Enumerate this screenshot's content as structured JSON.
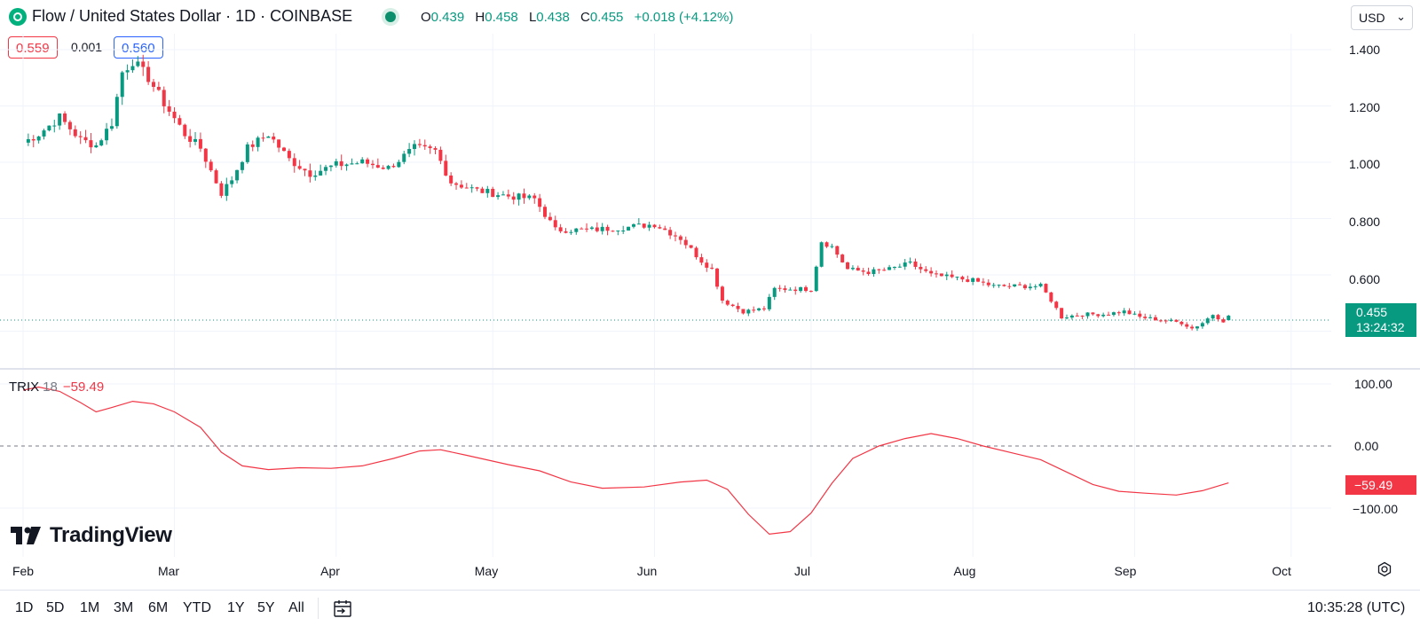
{
  "header": {
    "title": "Flow / United States Dollar · 1D · COINBASE",
    "ohlc": [
      {
        "key": "O",
        "value": "0.439"
      },
      {
        "key": "H",
        "value": "0.458"
      },
      {
        "key": "L",
        "value": "0.438"
      },
      {
        "key": "C",
        "value": "0.455"
      }
    ],
    "change": "+0.018 (+4.12%)",
    "currency": "USD",
    "icons": {
      "symbol": "flow-logo-icon",
      "live": "live-status-dot-icon",
      "currency_dropdown": "chevron-down-icon"
    }
  },
  "trade": {
    "sell_price": "0.559",
    "spread": "0.001",
    "buy_price": "0.560"
  },
  "price_axis": {
    "labels": [
      "1.400",
      "1.200",
      "1.000",
      "0.800",
      "0.600"
    ]
  },
  "last_price": {
    "value": "0.455",
    "countdown": "13:24:32"
  },
  "indicator": {
    "name": "TRIX",
    "param": "18",
    "value": "−59.49",
    "axis_labels": [
      "100.00",
      "0.00",
      "−100.00"
    ],
    "tag": "−59.49"
  },
  "branding": {
    "name": "TradingView",
    "icon": "tradingview-logo-icon"
  },
  "time_axis": {
    "months": [
      "Feb",
      "Mar",
      "Apr",
      "May",
      "Jun",
      "Jul",
      "Aug",
      "Sep",
      "Oct"
    ]
  },
  "toolbar": {
    "ranges": [
      "1D",
      "5D",
      "1M",
      "3M",
      "6M",
      "YTD",
      "1Y",
      "5Y",
      "All"
    ],
    "clock": "10:35:28 (UTC)",
    "icons": {
      "date_range": "calendar-goto-icon",
      "settings": "gear-icon"
    }
  },
  "colors": {
    "up": "#089981",
    "down": "#f23645",
    "trix_line": "#f23645",
    "grid": "#f0f3fa",
    "accent": "#2962ff"
  },
  "chart_data": [
    {
      "type": "candlestick",
      "title": "Flow / United States Dollar · 1D · COINBASE",
      "x_range": [
        "2024-02-01",
        "2024-10-05"
      ],
      "ylim": [
        0.36,
        1.48
      ],
      "grid": true,
      "series": [
        {
          "name": "FLOW/USD",
          "anchor_closes": [
            [
              "2024-02-01",
              1.07
            ],
            [
              "2024-02-04",
              1.1
            ],
            [
              "2024-02-08",
              1.16
            ],
            [
              "2024-02-12",
              1.08
            ],
            [
              "2024-02-15",
              1.06
            ],
            [
              "2024-02-18",
              1.14
            ],
            [
              "2024-02-20",
              1.32
            ],
            [
              "2024-02-22",
              1.36
            ],
            [
              "2024-02-25",
              1.3
            ],
            [
              "2024-02-28",
              1.21
            ],
            [
              "2024-03-03",
              1.1
            ],
            [
              "2024-03-06",
              1.05
            ],
            [
              "2024-03-10",
              0.89
            ],
            [
              "2024-03-12",
              0.94
            ],
            [
              "2024-03-15",
              1.05
            ],
            [
              "2024-03-19",
              1.1
            ],
            [
              "2024-03-23",
              1.01
            ],
            [
              "2024-03-27",
              0.96
            ],
            [
              "2024-04-01",
              0.99
            ],
            [
              "2024-04-06",
              1.0
            ],
            [
              "2024-04-11",
              0.98
            ],
            [
              "2024-04-16",
              1.05
            ],
            [
              "2024-04-20",
              1.04
            ],
            [
              "2024-04-23",
              0.93
            ],
            [
              "2024-04-28",
              0.9
            ],
            [
              "2024-05-04",
              0.88
            ],
            [
              "2024-05-09",
              0.87
            ],
            [
              "2024-05-13",
              0.76
            ],
            [
              "2024-05-20",
              0.76
            ],
            [
              "2024-05-27",
              0.77
            ],
            [
              "2024-06-01",
              0.78
            ],
            [
              "2024-06-06",
              0.73
            ],
            [
              "2024-06-10",
              0.65
            ],
            [
              "2024-06-12",
              0.62
            ],
            [
              "2024-06-14",
              0.51
            ],
            [
              "2024-06-18",
              0.47
            ],
            [
              "2024-06-22",
              0.48
            ],
            [
              "2024-06-24",
              0.55
            ],
            [
              "2024-06-28",
              0.55
            ],
            [
              "2024-07-01",
              0.55
            ],
            [
              "2024-07-03",
              0.72
            ],
            [
              "2024-07-05",
              0.7
            ],
            [
              "2024-07-08",
              0.62
            ],
            [
              "2024-07-12",
              0.61
            ],
            [
              "2024-07-16",
              0.62
            ],
            [
              "2024-07-20",
              0.64
            ],
            [
              "2024-07-24",
              0.6
            ],
            [
              "2024-07-28",
              0.59
            ],
            [
              "2024-08-01",
              0.58
            ],
            [
              "2024-08-05",
              0.56
            ],
            [
              "2024-08-10",
              0.56
            ],
            [
              "2024-08-14",
              0.56
            ],
            [
              "2024-08-16",
              0.51
            ],
            [
              "2024-08-18",
              0.45
            ],
            [
              "2024-08-22",
              0.46
            ],
            [
              "2024-08-26",
              0.46
            ],
            [
              "2024-08-30",
              0.47
            ],
            [
              "2024-09-02",
              0.45
            ],
            [
              "2024-09-06",
              0.44
            ],
            [
              "2024-09-10",
              0.43
            ],
            [
              "2024-09-12",
              0.41
            ],
            [
              "2024-09-14",
              0.43
            ],
            [
              "2024-09-16",
              0.46
            ],
            [
              "2024-09-18",
              0.437
            ],
            [
              "2024-09-19",
              0.455
            ]
          ]
        }
      ],
      "last": {
        "date": "2024-09-19",
        "open": 0.439,
        "high": 0.458,
        "low": 0.438,
        "close": 0.455
      }
    },
    {
      "type": "line",
      "title": "TRIX 18",
      "x_range": [
        "2024-02-01",
        "2024-10-05"
      ],
      "ylim": [
        -160,
        100
      ],
      "zero_line": true,
      "series": [
        {
          "name": "TRIX",
          "points": [
            [
              "2024-02-01",
              90
            ],
            [
              "2024-02-04",
              95
            ],
            [
              "2024-02-08",
              88
            ],
            [
              "2024-02-12",
              70
            ],
            [
              "2024-02-15",
              55
            ],
            [
              "2024-02-18",
              62
            ],
            [
              "2024-02-22",
              72
            ],
            [
              "2024-02-26",
              68
            ],
            [
              "2024-03-01",
              55
            ],
            [
              "2024-03-06",
              30
            ],
            [
              "2024-03-10",
              -10
            ],
            [
              "2024-03-14",
              -32
            ],
            [
              "2024-03-19",
              -38
            ],
            [
              "2024-03-25",
              -35
            ],
            [
              "2024-03-31",
              -36
            ],
            [
              "2024-04-06",
              -32
            ],
            [
              "2024-04-12",
              -20
            ],
            [
              "2024-04-17",
              -8
            ],
            [
              "2024-04-21",
              -6
            ],
            [
              "2024-04-26",
              -15
            ],
            [
              "2024-05-04",
              -30
            ],
            [
              "2024-05-10",
              -40
            ],
            [
              "2024-05-16",
              -58
            ],
            [
              "2024-05-22",
              -68
            ],
            [
              "2024-05-30",
              -66
            ],
            [
              "2024-06-06",
              -58
            ],
            [
              "2024-06-11",
              -55
            ],
            [
              "2024-06-15",
              -70
            ],
            [
              "2024-06-19",
              -110
            ],
            [
              "2024-06-23",
              -142
            ],
            [
              "2024-06-27",
              -138
            ],
            [
              "2024-07-01",
              -108
            ],
            [
              "2024-07-05",
              -60
            ],
            [
              "2024-07-09",
              -20
            ],
            [
              "2024-07-14",
              0
            ],
            [
              "2024-07-19",
              12
            ],
            [
              "2024-07-24",
              20
            ],
            [
              "2024-07-29",
              12
            ],
            [
              "2024-08-03",
              0
            ],
            [
              "2024-08-09",
              -12
            ],
            [
              "2024-08-14",
              -22
            ],
            [
              "2024-08-19",
              -42
            ],
            [
              "2024-08-24",
              -62
            ],
            [
              "2024-08-29",
              -73
            ],
            [
              "2024-09-03",
              -76
            ],
            [
              "2024-09-09",
              -79
            ],
            [
              "2024-09-14",
              -72
            ],
            [
              "2024-09-19",
              -59.49
            ]
          ]
        }
      ]
    }
  ]
}
